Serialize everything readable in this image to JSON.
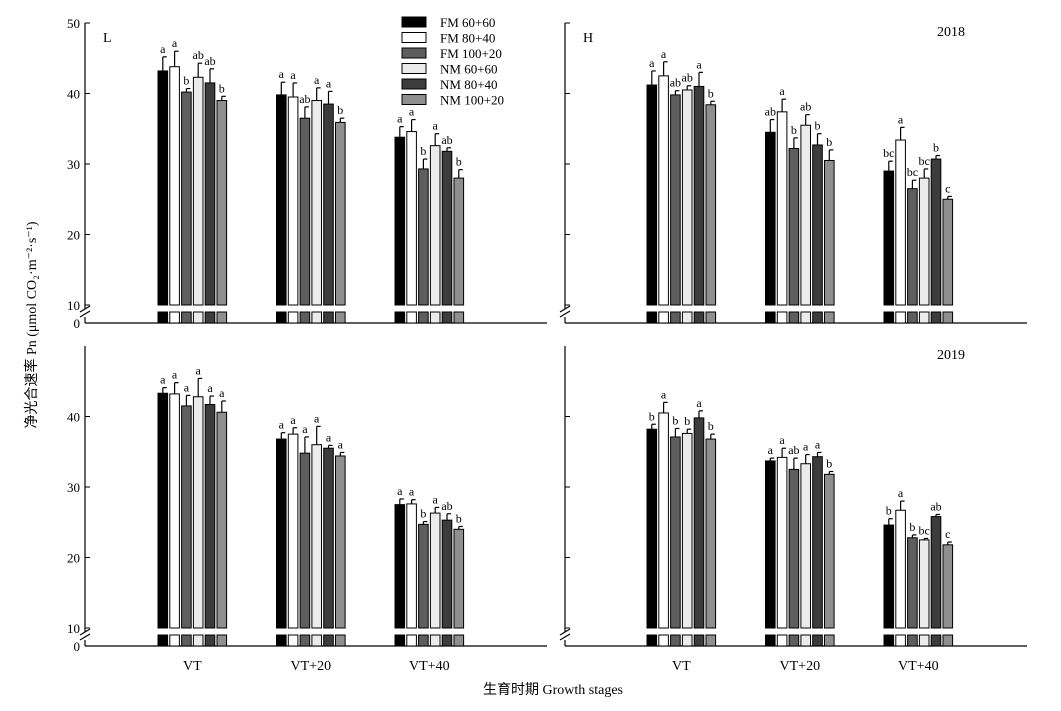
{
  "axis_y_label": "净光合速率 Pn (μmol CO₂·m⁻²·s⁻¹)",
  "axis_x_label": "生育时期 Growth stages",
  "chart_data": {
    "type": "bar",
    "categories": [
      "VT",
      "VT+20",
      "VT+40"
    ],
    "x_tick_labels": [
      "VT",
      "VT+20",
      "VT+40"
    ],
    "series_names": [
      "FM 60+60",
      "FM 80+40",
      "FM 100+20",
      "NM 60+60",
      "NM 80+40",
      "NM 100+20"
    ],
    "colors": [
      "#000000",
      "#ffffff",
      "#5e5e5e",
      "#ebebeb",
      "#3c3c3c",
      "#8f8f8f"
    ],
    "ylim": [
      0,
      50
    ],
    "axis_break": [
      0,
      10
    ],
    "y_ticks": [
      10,
      20,
      30,
      40,
      50
    ],
    "legend_position": "top, inside left panel of 2018 row",
    "panels": [
      {
        "label": "L",
        "year": "",
        "show_legend": true,
        "top_tick": "50",
        "values": [
          [
            43.2,
            43.8,
            40.2,
            42.3,
            41.5,
            39.0
          ],
          [
            39.8,
            39.5,
            36.5,
            39.0,
            38.5,
            35.9
          ],
          [
            33.8,
            34.6,
            29.3,
            32.6,
            31.8,
            28.0
          ]
        ],
        "errors": [
          [
            2.0,
            2.2,
            0.5,
            2.0,
            2.0,
            0.6
          ],
          [
            1.8,
            2.0,
            1.6,
            1.8,
            1.8,
            0.6
          ],
          [
            1.5,
            1.7,
            1.4,
            1.7,
            0.5,
            1.2
          ]
        ],
        "letters": [
          [
            "a",
            "a",
            "b",
            "ab",
            "ab",
            "b"
          ],
          [
            "a",
            "a",
            "ab",
            "a",
            "a",
            "b"
          ],
          [
            "a",
            "a",
            "b",
            "a",
            "ab",
            "b"
          ]
        ]
      },
      {
        "label": "H",
        "year": "2018",
        "show_legend": false,
        "top_tick": "",
        "values": [
          [
            41.2,
            42.5,
            39.8,
            40.5,
            41.0,
            38.4
          ],
          [
            34.5,
            37.4,
            32.2,
            35.5,
            32.7,
            30.5
          ],
          [
            29.0,
            33.4,
            26.5,
            28.0,
            30.7,
            25.0
          ]
        ],
        "errors": [
          [
            2.0,
            2.0,
            0.6,
            0.6,
            2.0,
            0.5
          ],
          [
            1.8,
            1.8,
            1.5,
            1.5,
            1.6,
            1.5
          ],
          [
            1.4,
            1.8,
            1.2,
            1.3,
            0.5,
            0.4
          ]
        ],
        "letters": [
          [
            "a",
            "a",
            "ab",
            "ab",
            "a",
            "b"
          ],
          [
            "ab",
            "a",
            "b",
            "ab",
            "b",
            "b"
          ],
          [
            "bc",
            "a",
            "bc",
            "bc",
            "b",
            "c"
          ]
        ]
      },
      {
        "label": "",
        "year": "",
        "show_legend": false,
        "top_tick": "",
        "values": [
          [
            43.3,
            43.2,
            41.5,
            42.8,
            41.7,
            40.6
          ],
          [
            36.8,
            37.5,
            34.8,
            36.0,
            35.5,
            34.4
          ],
          [
            27.5,
            27.6,
            24.7,
            26.3,
            25.3,
            24.0
          ]
        ],
        "errors": [
          [
            0.8,
            1.6,
            1.5,
            2.6,
            1.2,
            1.6
          ],
          [
            0.9,
            0.9,
            2.3,
            2.6,
            0.4,
            0.5
          ],
          [
            0.8,
            0.6,
            0.4,
            0.8,
            0.9,
            0.4
          ]
        ],
        "letters": [
          [
            "a",
            "a",
            "a",
            "a",
            "a",
            "a"
          ],
          [
            "a",
            "a",
            "a",
            "a",
            "a",
            "a"
          ],
          [
            "a",
            "a",
            "b",
            "a",
            "ab",
            "b"
          ]
        ]
      },
      {
        "label": "",
        "year": "2019",
        "show_legend": false,
        "top_tick": "",
        "values": [
          [
            38.2,
            40.5,
            37.1,
            37.6,
            39.8,
            36.8
          ],
          [
            33.7,
            34.2,
            32.5,
            33.3,
            34.3,
            31.8
          ],
          [
            24.6,
            26.7,
            22.8,
            22.5,
            25.8,
            21.8
          ]
        ],
        "errors": [
          [
            0.7,
            1.5,
            1.2,
            0.6,
            1.0,
            0.7
          ],
          [
            0.4,
            1.3,
            1.6,
            1.3,
            0.6,
            0.4
          ],
          [
            0.9,
            1.3,
            0.4,
            0.2,
            0.3,
            0.4
          ]
        ],
        "letters": [
          [
            "b",
            "a",
            "b",
            "b",
            "a",
            "b"
          ],
          [
            "a",
            "a",
            "ab",
            "a",
            "a",
            "b"
          ],
          [
            "b",
            "a",
            "b",
            "bc",
            "ab",
            "c"
          ]
        ]
      }
    ]
  }
}
